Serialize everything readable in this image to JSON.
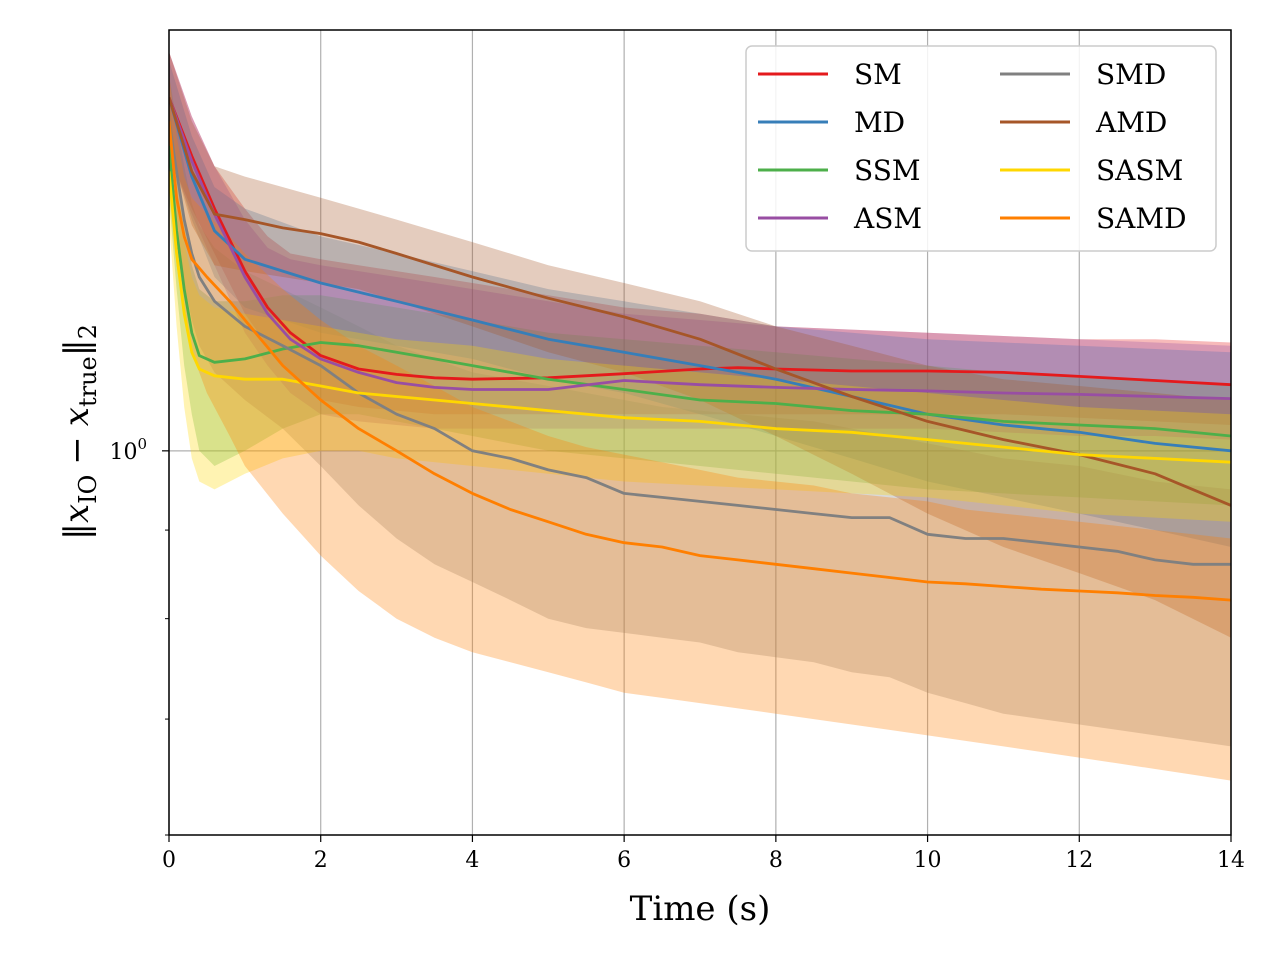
{
  "chart_data": {
    "type": "line",
    "title": "",
    "xlabel": "Time (s)",
    "ylabel_parts": {
      "norm": "‖",
      "x": "x",
      "io": "IO",
      "minus": "−",
      "true": "true",
      "sub2": "2"
    },
    "xlim": [
      0,
      14
    ],
    "ylim": [
      0.6,
      1.75
    ],
    "yscale": "log",
    "x_ticks": [
      0,
      2,
      4,
      6,
      8,
      10,
      12,
      14
    ],
    "x_tick_labels": [
      "0",
      "2",
      "4",
      "6",
      "8",
      "10",
      "12",
      "14"
    ],
    "y_tick_label": {
      "base": "10",
      "exp": "0"
    },
    "grid": true,
    "legend_position": "top-right",
    "series": [
      {
        "name": "SM",
        "color": "#e41a1c",
        "x": [
          0,
          0.3,
          0.6,
          1.0,
          1.3,
          1.6,
          2.0,
          2.5,
          3.0,
          3.5,
          4.0,
          5.0,
          6.0,
          7.0,
          7.5,
          8.0,
          9.0,
          10.0,
          11.0,
          12.0,
          13.0,
          14.0
        ],
        "y": [
          1.6,
          1.48,
          1.38,
          1.27,
          1.21,
          1.17,
          1.135,
          1.115,
          1.107,
          1.102,
          1.1,
          1.102,
          1.108,
          1.115,
          1.117,
          1.115,
          1.112,
          1.112,
          1.11,
          1.104,
          1.098,
          1.092
        ],
        "band_upper": [
          1.7,
          1.56,
          1.46,
          1.38,
          1.33,
          1.3,
          1.29,
          1.28,
          1.27,
          1.26,
          1.25,
          1.23,
          1.21,
          1.2,
          1.19,
          1.18,
          1.175,
          1.17,
          1.165,
          1.16,
          1.16,
          1.155
        ],
        "band_lower": [
          1.48,
          1.38,
          1.3,
          1.2,
          1.15,
          1.11,
          1.07,
          1.06,
          1.055,
          1.05,
          1.05,
          1.05,
          1.05,
          1.05,
          1.05,
          1.05,
          1.05,
          1.05,
          1.05,
          1.045,
          1.04,
          1.035
        ]
      },
      {
        "name": "MD",
        "color": "#377eb8",
        "x": [
          0,
          0.3,
          0.6,
          1.0,
          2.0,
          3.0,
          4.0,
          5.0,
          6.0,
          7.0,
          8.0,
          9.0,
          10.0,
          11.0,
          12.0,
          13.0,
          14.0
        ],
        "y": [
          1.6,
          1.44,
          1.34,
          1.29,
          1.25,
          1.22,
          1.19,
          1.16,
          1.14,
          1.12,
          1.1,
          1.075,
          1.05,
          1.035,
          1.025,
          1.01,
          1.0
        ],
        "band_upper": [
          1.68,
          1.52,
          1.42,
          1.38,
          1.33,
          1.3,
          1.27,
          1.24,
          1.22,
          1.2,
          1.18,
          1.17,
          1.16,
          1.155,
          1.15,
          1.145,
          1.14
        ],
        "band_lower": [
          1.5,
          1.36,
          1.26,
          1.21,
          1.17,
          1.15,
          1.13,
          1.1,
          1.08,
          1.05,
          1.02,
          0.99,
          0.96,
          0.94,
          0.92,
          0.9,
          0.88
        ]
      },
      {
        "name": "SSM",
        "color": "#4daf4a",
        "x": [
          0,
          0.1,
          0.2,
          0.3,
          0.4,
          0.6,
          1.0,
          1.5,
          2.0,
          2.5,
          3.0,
          3.5,
          4.0,
          5.0,
          6.0,
          7.0,
          8.0,
          9.0,
          10.0,
          11.0,
          12.0,
          13.0,
          14.0
        ],
        "y": [
          1.5,
          1.34,
          1.24,
          1.17,
          1.135,
          1.125,
          1.13,
          1.145,
          1.155,
          1.15,
          1.14,
          1.13,
          1.12,
          1.1,
          1.085,
          1.07,
          1.065,
          1.055,
          1.05,
          1.04,
          1.035,
          1.03,
          1.02
        ],
        "band_upper": [
          1.6,
          1.46,
          1.36,
          1.28,
          1.24,
          1.22,
          1.22,
          1.23,
          1.23,
          1.22,
          1.21,
          1.2,
          1.19,
          1.17,
          1.16,
          1.15,
          1.14,
          1.13,
          1.12,
          1.11,
          1.105,
          1.1,
          1.09
        ],
        "band_lower": [
          1.4,
          1.24,
          1.12,
          1.05,
          1.0,
          0.98,
          1.0,
          1.03,
          1.05,
          1.05,
          1.04,
          1.03,
          1.02,
          1.0,
          0.99,
          0.98,
          0.97,
          0.96,
          0.95,
          0.945,
          0.94,
          0.935,
          0.93
        ]
      },
      {
        "name": "ASM",
        "color": "#984ea3",
        "x": [
          0,
          0.3,
          0.6,
          1.0,
          1.3,
          1.6,
          2.0,
          2.5,
          3.0,
          3.5,
          4.0,
          5.0,
          6.0,
          7.0,
          8.0,
          9.0,
          10.0,
          11.0,
          12.0,
          13.0,
          14.0
        ],
        "y": [
          1.6,
          1.47,
          1.37,
          1.26,
          1.2,
          1.16,
          1.13,
          1.11,
          1.095,
          1.088,
          1.085,
          1.085,
          1.098,
          1.092,
          1.088,
          1.085,
          1.083,
          1.08,
          1.078,
          1.075,
          1.072
        ],
        "band_upper": [
          1.7,
          1.56,
          1.46,
          1.36,
          1.31,
          1.29,
          1.28,
          1.27,
          1.26,
          1.25,
          1.24,
          1.22,
          1.2,
          1.19,
          1.18,
          1.175,
          1.17,
          1.165,
          1.16,
          1.155,
          1.15
        ],
        "band_lower": [
          1.48,
          1.37,
          1.28,
          1.17,
          1.12,
          1.08,
          1.05,
          1.04,
          1.035,
          1.03,
          1.03,
          1.03,
          1.03,
          1.03,
          1.03,
          1.03,
          1.03,
          1.025,
          1.02,
          1.02,
          1.015
        ]
      },
      {
        "name": "SMD",
        "color": "#808080",
        "x": [
          0,
          0.1,
          0.2,
          0.3,
          0.4,
          0.6,
          1.0,
          1.5,
          2.0,
          2.5,
          3.0,
          3.5,
          4.0,
          4.5,
          5.0,
          5.5,
          6.0,
          6.5,
          7.0,
          7.5,
          8.0,
          8.5,
          9.0,
          9.5,
          10.0,
          10.5,
          11.0,
          11.5,
          12.0,
          12.5,
          13.0,
          13.5,
          14.0
        ],
        "y": [
          1.55,
          1.45,
          1.36,
          1.3,
          1.26,
          1.22,
          1.18,
          1.15,
          1.12,
          1.08,
          1.05,
          1.03,
          1.0,
          0.99,
          0.975,
          0.965,
          0.945,
          0.94,
          0.935,
          0.93,
          0.925,
          0.92,
          0.915,
          0.915,
          0.895,
          0.89,
          0.89,
          0.885,
          0.88,
          0.875,
          0.865,
          0.86,
          0.86
        ],
        "band_upper": [
          1.65,
          1.55,
          1.46,
          1.39,
          1.35,
          1.31,
          1.27,
          1.24,
          1.21,
          1.18,
          1.15,
          1.13,
          1.11,
          1.1,
          1.09,
          1.08,
          1.07,
          1.06,
          1.055,
          1.05,
          1.045,
          1.04,
          1.03,
          1.02,
          1.01,
          1.0,
          0.99,
          0.985,
          0.98,
          0.97,
          0.96,
          0.955,
          0.95
        ],
        "band_lower": [
          1.45,
          1.35,
          1.25,
          1.19,
          1.15,
          1.11,
          1.07,
          1.03,
          0.98,
          0.93,
          0.89,
          0.86,
          0.84,
          0.82,
          0.8,
          0.79,
          0.785,
          0.78,
          0.775,
          0.765,
          0.76,
          0.755,
          0.745,
          0.74,
          0.725,
          0.715,
          0.705,
          0.7,
          0.695,
          0.69,
          0.685,
          0.68,
          0.675
        ]
      },
      {
        "name": "AMD",
        "color": "#a65628",
        "x": [
          0,
          0.3,
          0.6,
          1.0,
          1.5,
          2.0,
          2.5,
          3.0,
          4.0,
          5.0,
          6.0,
          7.0,
          8.0,
          9.0,
          10.0,
          11.0,
          12.0,
          13.0,
          14.0
        ],
        "y": [
          1.6,
          1.45,
          1.37,
          1.36,
          1.345,
          1.335,
          1.32,
          1.3,
          1.26,
          1.225,
          1.195,
          1.16,
          1.115,
          1.075,
          1.04,
          1.015,
          0.995,
          0.97,
          0.93
        ],
        "band_upper": [
          1.7,
          1.55,
          1.46,
          1.44,
          1.42,
          1.4,
          1.38,
          1.36,
          1.32,
          1.28,
          1.25,
          1.22,
          1.18,
          1.15,
          1.12,
          1.1,
          1.09,
          1.08,
          1.07
        ],
        "band_lower": [
          1.5,
          1.35,
          1.28,
          1.27,
          1.26,
          1.25,
          1.24,
          1.22,
          1.18,
          1.14,
          1.11,
          1.07,
          1.02,
          0.97,
          0.92,
          0.88,
          0.85,
          0.82,
          0.78
        ]
      },
      {
        "name": "SASM",
        "color": "#ffd700",
        "x": [
          0,
          0.1,
          0.2,
          0.3,
          0.4,
          0.6,
          1.0,
          1.5,
          2.0,
          2.5,
          3.0,
          4.0,
          5.0,
          6.0,
          7.0,
          8.0,
          9.0,
          10.0,
          11.0,
          12.0,
          13.0,
          14.0
        ],
        "y": [
          1.45,
          1.3,
          1.2,
          1.14,
          1.115,
          1.105,
          1.1,
          1.1,
          1.09,
          1.08,
          1.075,
          1.065,
          1.055,
          1.045,
          1.04,
          1.03,
          1.025,
          1.015,
          1.005,
          0.995,
          0.99,
          0.985
        ],
        "band_upper": [
          1.55,
          1.42,
          1.32,
          1.26,
          1.23,
          1.21,
          1.2,
          1.19,
          1.18,
          1.17,
          1.16,
          1.15,
          1.13,
          1.12,
          1.11,
          1.1,
          1.09,
          1.08,
          1.07,
          1.06,
          1.055,
          1.05
        ],
        "band_lower": [
          1.36,
          1.18,
          1.06,
          0.99,
          0.96,
          0.95,
          0.97,
          0.99,
          1.0,
          1.0,
          0.99,
          0.98,
          0.97,
          0.96,
          0.955,
          0.95,
          0.945,
          0.94,
          0.93,
          0.92,
          0.915,
          0.91
        ]
      },
      {
        "name": "SAMD",
        "color": "#ff7f00",
        "x": [
          0,
          0.1,
          0.2,
          0.3,
          0.5,
          0.8,
          1.0,
          1.5,
          2.0,
          2.5,
          3.0,
          3.5,
          4.0,
          4.5,
          5.0,
          5.5,
          6.0,
          6.5,
          7.0,
          7.5,
          8.0,
          8.5,
          9.0,
          9.5,
          10.0,
          10.5,
          11.0,
          11.5,
          12.0,
          12.5,
          13.0,
          13.5,
          14.0
        ],
        "y": [
          1.55,
          1.4,
          1.33,
          1.29,
          1.26,
          1.22,
          1.19,
          1.12,
          1.07,
          1.03,
          1.0,
          0.97,
          0.945,
          0.925,
          0.91,
          0.895,
          0.885,
          0.88,
          0.87,
          0.865,
          0.86,
          0.855,
          0.85,
          0.845,
          0.84,
          0.838,
          0.835,
          0.832,
          0.83,
          0.828,
          0.825,
          0.823,
          0.82
        ],
        "band_upper": [
          1.65,
          1.52,
          1.44,
          1.4,
          1.37,
          1.33,
          1.3,
          1.24,
          1.19,
          1.15,
          1.12,
          1.09,
          1.06,
          1.04,
          1.02,
          1.005,
          0.995,
          0.985,
          0.975,
          0.965,
          0.96,
          0.955,
          0.945,
          0.94,
          0.935,
          0.925,
          0.92,
          0.915,
          0.91,
          0.905,
          0.9,
          0.895,
          0.89
        ],
        "band_lower": [
          1.45,
          1.28,
          1.2,
          1.14,
          1.08,
          1.02,
          0.98,
          0.92,
          0.87,
          0.83,
          0.8,
          0.78,
          0.765,
          0.755,
          0.745,
          0.735,
          0.725,
          0.72,
          0.715,
          0.71,
          0.705,
          0.7,
          0.695,
          0.69,
          0.685,
          0.68,
          0.675,
          0.67,
          0.665,
          0.66,
          0.655,
          0.65,
          0.645
        ]
      }
    ]
  }
}
